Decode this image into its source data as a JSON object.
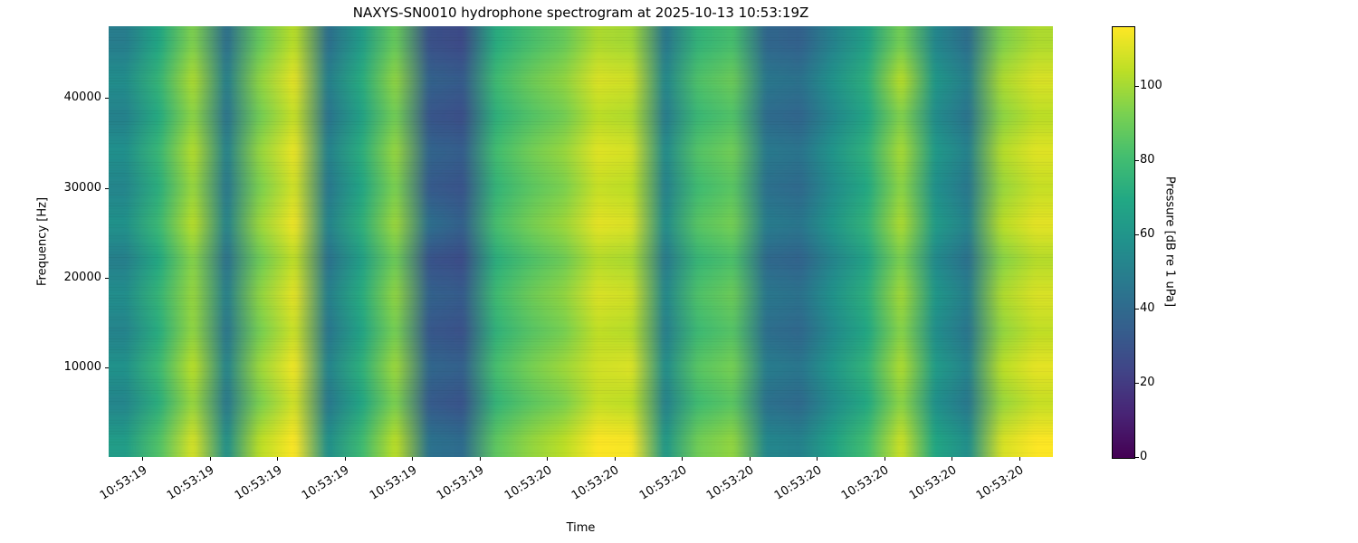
{
  "figure": {
    "background": "#ffffff"
  },
  "chart_data": {
    "type": "heatmap",
    "title": "NAXYS-SN0010 hydrophone spectrogram at 2025-10-13 10:53:19Z",
    "xlabel": "Time",
    "ylabel": "Frequency [Hz]",
    "colorbar_label": "Pressure [dB re 1 uPa]",
    "colormap": "viridis",
    "clim": [
      0,
      116
    ],
    "colorbar_ticks": [
      0,
      20,
      40,
      60,
      80,
      100
    ],
    "ylim": [
      0,
      48000
    ],
    "yticks": [
      10000,
      20000,
      30000,
      40000
    ],
    "x_tick_labels": [
      "10:53:19",
      "10:53:19",
      "10:53:19",
      "10:53:19",
      "10:53:19",
      "10:53:19",
      "10:53:20",
      "10:53:20",
      "10:53:20",
      "10:53:20",
      "10:53:20",
      "10:53:20",
      "10:53:20",
      "10:53:20"
    ],
    "n_time_bins": 28,
    "n_freq_bins": 12,
    "values_orientation": "rows top-to-bottom (high to low frequency), columns left-to-right (time)",
    "values": [
      [
        49,
        69,
        94,
        42,
        89,
        104,
        42,
        64,
        89,
        29,
        26,
        72,
        82,
        89,
        102,
        100,
        46,
        76,
        82,
        39,
        36,
        52,
        66,
        92,
        54,
        42,
        94,
        102
      ],
      [
        57,
        77,
        102,
        50,
        97,
        112,
        50,
        72,
        97,
        37,
        34,
        80,
        90,
        97,
        110,
        108,
        54,
        84,
        90,
        47,
        44,
        60,
        74,
        104,
        62,
        50,
        102,
        110
      ],
      [
        51,
        71,
        96,
        44,
        91,
        106,
        44,
        66,
        91,
        31,
        28,
        74,
        84,
        91,
        104,
        102,
        48,
        78,
        84,
        41,
        38,
        54,
        68,
        94,
        56,
        44,
        96,
        104
      ],
      [
        58,
        78,
        103,
        51,
        98,
        113,
        51,
        73,
        98,
        38,
        35,
        81,
        91,
        98,
        111,
        109,
        55,
        85,
        91,
        48,
        45,
        61,
        75,
        101,
        63,
        51,
        103,
        111
      ],
      [
        53,
        73,
        98,
        46,
        93,
        108,
        46,
        68,
        93,
        33,
        30,
        76,
        86,
        93,
        106,
        104,
        50,
        80,
        86,
        43,
        40,
        56,
        70,
        96,
        58,
        46,
        98,
        106
      ],
      [
        59,
        79,
        104,
        52,
        99,
        114,
        52,
        74,
        99,
        43,
        36,
        82,
        92,
        99,
        112,
        110,
        56,
        86,
        92,
        49,
        46,
        62,
        76,
        102,
        64,
        52,
        104,
        112
      ],
      [
        50,
        70,
        95,
        43,
        90,
        105,
        43,
        65,
        90,
        30,
        27,
        73,
        83,
        90,
        103,
        101,
        47,
        77,
        83,
        40,
        37,
        53,
        67,
        93,
        55,
        43,
        95,
        103
      ],
      [
        57,
        77,
        98,
        50,
        97,
        112,
        50,
        72,
        97,
        37,
        34,
        80,
        90,
        97,
        110,
        108,
        54,
        84,
        90,
        47,
        44,
        60,
        74,
        100,
        62,
        50,
        102,
        110
      ],
      [
        52,
        72,
        97,
        45,
        92,
        107,
        45,
        67,
        92,
        32,
        29,
        75,
        85,
        92,
        105,
        103,
        49,
        79,
        85,
        42,
        39,
        55,
        69,
        95,
        57,
        45,
        97,
        105
      ],
      [
        59,
        79,
        104,
        52,
        99,
        114,
        52,
        74,
        99,
        39,
        36,
        82,
        92,
        99,
        108,
        110,
        56,
        86,
        92,
        49,
        46,
        62,
        76,
        102,
        64,
        52,
        104,
        112
      ],
      [
        53,
        73,
        98,
        46,
        93,
        108,
        46,
        68,
        93,
        33,
        30,
        76,
        86,
        93,
        106,
        104,
        50,
        80,
        86,
        43,
        40,
        56,
        70,
        96,
        58,
        46,
        98,
        106
      ],
      [
        64,
        84,
        109,
        57,
        104,
        116,
        57,
        79,
        104,
        44,
        41,
        87,
        97,
        104,
        116,
        115,
        61,
        91,
        97,
        54,
        51,
        67,
        81,
        107,
        69,
        57,
        109,
        116
      ]
    ]
  }
}
